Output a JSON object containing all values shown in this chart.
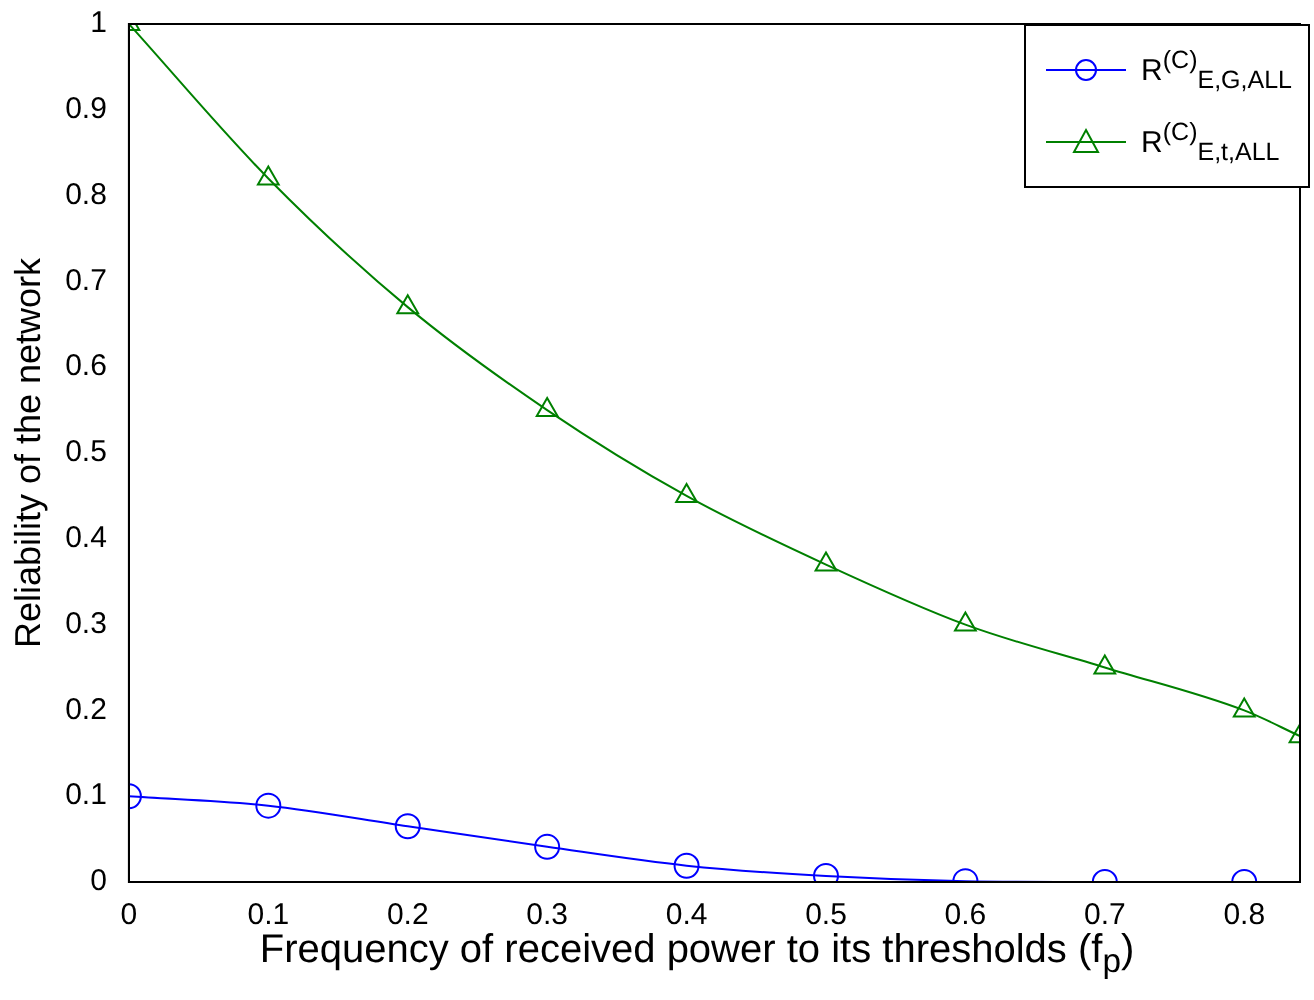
{
  "chart_data": {
    "type": "line",
    "xlabel": "Frequency of received power to its thresholds (f$_{p}$)",
    "ylabel": "Reliability of the network",
    "xlim": [
      0,
      0.84
    ],
    "xticks": [
      0,
      0.1,
      0.2,
      0.3,
      0.4,
      0.5,
      0.6,
      0.7,
      0.8
    ],
    "ylim": [
      0,
      1
    ],
    "yticks": [
      0,
      0.1,
      0.2,
      0.3,
      0.4,
      0.5,
      0.6,
      0.7,
      0.8,
      0.9,
      1
    ],
    "grid": false,
    "legend": "top right",
    "line_style": "solid",
    "series": [
      {
        "name": "R$^{(C)}$$_{E,G,ALL}$",
        "color": "#0000ff",
        "marker": "circle",
        "x": [
          0,
          0.1,
          0.2,
          0.3,
          0.4,
          0.5,
          0.6,
          0.7,
          0.8
        ],
        "values": [
          0.1,
          0.089,
          0.065,
          0.041,
          0.019,
          0.007,
          0.001,
          0,
          0
        ]
      },
      {
        "name": "R$^{(C)}$$_{E,t,ALL}$",
        "color": "#008000",
        "marker": "triangle",
        "x": [
          0,
          0.1,
          0.2,
          0.3,
          0.4,
          0.5,
          0.6,
          0.7,
          0.8,
          0.84
        ],
        "values": [
          1,
          0.82,
          0.67,
          0.55,
          0.45,
          0.37,
          0.3,
          0.25,
          0.2,
          0.17
        ]
      }
    ]
  }
}
